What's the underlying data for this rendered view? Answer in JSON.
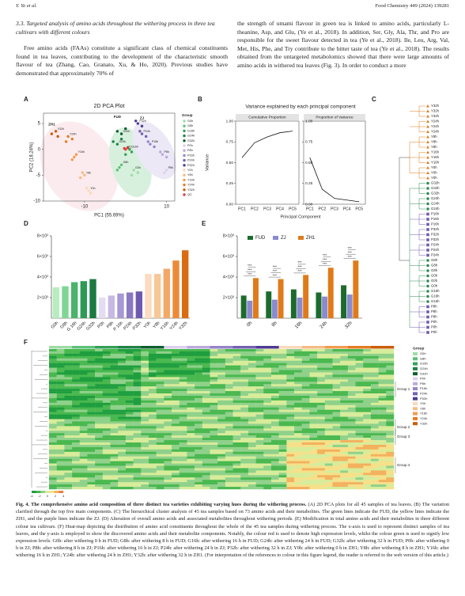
{
  "header": {
    "authors": "Y. Ye et al.",
    "journal": "Food Chemistry 449 (2024) 139281"
  },
  "section": {
    "heading": "3.3. Targeted analysis of amino acids throughout the withering process in three tea cultivars with different colours",
    "left_paragraph": "Free amino acids (FAAs) constitute a significant class of chemical constituents found in tea leaves, contributing to the development of the characteristic smooth flavour of tea (Zhang, Cao, Granato, Xu, & Ho, 2020). Previous studies have demonstrated that approximately 70% of",
    "right_paragraph": "the strength of umami flavour in green tea is linked to amino acids, particularly L-theanine, Asp, and Glu, (Ye et al., 2018). In addition, Ser, Gly, Ala, Thr, and Pro are responsible for the sweet flavour detected in tea (Ye et al., 2018). Ile, Leu, Arg, Val, Met, His, Phe, and Try contribute to the bitter taste of tea (Ye et al., 2018). The results obtained from the untargeted metabolomics showed that there were large amounts of amino acids in withered tea leaves (Fig. 3). In order to conduct a more"
  },
  "figure": {
    "panel_labels": [
      "A",
      "B",
      "C",
      "D",
      "E",
      "F"
    ],
    "dendrogram_leaves": [
      "Y32h",
      "Y32h",
      "Y32h",
      "Y24h",
      "Y24h",
      "Y24h",
      "Y8h",
      "Y8h",
      "Y8h",
      "Y16h",
      "Y16h",
      "Y16h",
      "Y0h",
      "Y0h",
      "Y0h",
      "G32h",
      "G32h",
      "G32h",
      "G24h",
      "G24h",
      "G24h",
      "P16h",
      "P16h",
      "P16h",
      "P32h",
      "P32h",
      "P32h",
      "P24h",
      "P24h",
      "P24h",
      "G8h",
      "G8h",
      "G8h",
      "G0h",
      "G0h",
      "G0h",
      "G16h",
      "G16h",
      "G16h",
      "P8h",
      "P8h",
      "P8h",
      "P0h",
      "P0h",
      "P0h"
    ],
    "heatmap_legend_title": "Group",
    "heatmap_groups": [
      "Group 1",
      "Group 2",
      "Group 3",
      "Group 4"
    ],
    "colorbar_ticks": [
      -4,
      -2,
      0,
      2,
      4
    ]
  },
  "chart_data": [
    {
      "type": "scatter",
      "title": "2D PCA Plot",
      "x_label": "PC1 (55.69%)",
      "y_label": "PC2 (18.24%)",
      "xlim": [
        -20,
        12
      ],
      "ylim": [
        -10,
        7
      ],
      "xticks": [
        -10,
        10
      ],
      "yticks": [
        -10,
        -5,
        0,
        5
      ],
      "legend_title": "Group",
      "annotations": [
        {
          "text": "FUD",
          "x": -2,
          "y": 6.3
        },
        {
          "text": "ZJ",
          "x": 4,
          "y": 6
        },
        {
          "text": "ZH1",
          "x": -18,
          "y": 4.8
        }
      ],
      "series": [
        {
          "name": "G0h",
          "color": "#9fdca6",
          "x": [
            2,
            1.5,
            3
          ],
          "y": [
            -4,
            -5,
            -4.5
          ]
        },
        {
          "name": "G8h",
          "color": "#5fc07a",
          "x": [
            -1,
            -2,
            -1.5
          ],
          "y": [
            -3,
            -4,
            -3.5
          ]
        },
        {
          "name": "G16h",
          "color": "#34a05a",
          "x": [
            1,
            0,
            1.5
          ],
          "y": [
            0,
            -1,
            -0.5
          ]
        },
        {
          "name": "G24h",
          "color": "#1f8246",
          "x": [
            -2,
            -1,
            -3
          ],
          "y": [
            1,
            2,
            1.5
          ]
        },
        {
          "name": "G32h",
          "color": "#0f5e30",
          "x": [
            -1,
            0,
            -2
          ],
          "y": [
            3,
            4,
            3.5
          ]
        },
        {
          "name": "P0h",
          "color": "#ddd0ee",
          "x": [
            10,
            11,
            9.5
          ],
          "y": [
            -4,
            -3.5,
            -4.5
          ]
        },
        {
          "name": "P8h",
          "color": "#bcaadc",
          "x": [
            9,
            10,
            8.5
          ],
          "y": [
            -1,
            -1.5,
            -0.5
          ]
        },
        {
          "name": "P16h",
          "color": "#9683c8",
          "x": [
            6,
            7,
            5.5
          ],
          "y": [
            1,
            0.5,
            1.5
          ]
        },
        {
          "name": "P24h",
          "color": "#7361b0",
          "x": [
            4,
            5,
            3.5
          ],
          "y": [
            3,
            2.5,
            3.5
          ]
        },
        {
          "name": "P32h",
          "color": "#4e3b91",
          "x": [
            3,
            4,
            2.5
          ],
          "y": [
            5,
            4.5,
            5.5
          ]
        },
        {
          "name": "Y0h",
          "color": "#f9d9bb",
          "x": [
            -9,
            -8.5,
            -9.5
          ],
          "y": [
            -8,
            -8.5,
            -7.5
          ]
        },
        {
          "name": "Y8h",
          "color": "#f5bc85",
          "x": [
            -10,
            -11,
            -10.5
          ],
          "y": [
            -5,
            -5.5,
            -4.5
          ]
        },
        {
          "name": "Y16h",
          "color": "#f09c50",
          "x": [
            -12,
            -13,
            -12.5
          ],
          "y": [
            -1,
            -2,
            -1.5
          ]
        },
        {
          "name": "Y24h",
          "color": "#e47c24",
          "x": [
            -14,
            -13,
            -14.5
          ],
          "y": [
            2.5,
            2,
            1.5
          ]
        },
        {
          "name": "Y32h",
          "color": "#c95d0a",
          "x": [
            -17,
            -18,
            -16.5
          ],
          "y": [
            3.5,
            3,
            2.5
          ]
        },
        {
          "name": "QC",
          "color": "#e04040",
          "x": [
            0,
            0.5,
            -0.3
          ],
          "y": [
            0,
            0.3,
            0.2
          ]
        }
      ]
    },
    {
      "type": "line",
      "title": "Variance explained by each principal component",
      "x_label": "Principal Component",
      "y_label": "Variance",
      "categories": [
        "PC1",
        "PC2",
        "PC3",
        "PC4",
        "PC5"
      ],
      "ylim": [
        0,
        1
      ],
      "yticks": [
        {
          "value": 0,
          "label": "0.00"
        },
        {
          "value": 0.25,
          "label": "0.25"
        },
        {
          "value": 0.5,
          "label": "0.50"
        },
        {
          "value": 0.75,
          "label": "0.75"
        },
        {
          "value": 1,
          "label": "1.00"
        }
      ],
      "series": [
        {
          "name": "Cumulative Proportion",
          "color": "#111111",
          "values": [
            0.56,
            0.74,
            0.81,
            0.86,
            0.88
          ]
        },
        {
          "name": "Proportion of Variance",
          "color": "#111111",
          "values": [
            0.56,
            0.18,
            0.07,
            0.05,
            0.03
          ]
        }
      ]
    },
    {
      "type": "bar",
      "categories": [
        "G0h",
        "G8h",
        "G 16h",
        "G24h",
        "G32h",
        "P0h",
        "P8h",
        "P 16h",
        "P24h",
        "P32h",
        "Y0h",
        "Y8h",
        "Y16h",
        "Y24h",
        "Y32h"
      ],
      "values": [
        3000,
        3100,
        3500,
        3600,
        3800,
        2000,
        2200,
        2400,
        2500,
        2600,
        4300,
        4300,
        4800,
        5600,
        6600
      ],
      "colors": [
        "#b8ecc0",
        "#7fd694",
        "#4cb36a",
        "#2e9a56",
        "#1a7a40",
        "#e3dcf2",
        "#c6b9e3",
        "#a898d4",
        "#8a78c2",
        "#6d5aae",
        "#fbdcc0",
        "#f8c796",
        "#f3a866",
        "#eb8b38",
        "#d96c12"
      ],
      "ylim": [
        0,
        8000
      ],
      "yticks": [
        {
          "value": 2000,
          "label": "2×10³"
        },
        {
          "value": 4000,
          "label": "4×10³"
        },
        {
          "value": 6000,
          "label": "6×10³"
        },
        {
          "value": 8000,
          "label": "8×10³"
        }
      ]
    },
    {
      "type": "grouped-bar",
      "categories": [
        "0h",
        "8h",
        "16h",
        "24h",
        "32h"
      ],
      "ylim": [
        0,
        8000
      ],
      "yticks": [
        {
          "value": 2000,
          "label": "2×10³"
        },
        {
          "value": 4000,
          "label": "4×10³"
        },
        {
          "value": 6000,
          "label": "6×10³"
        },
        {
          "value": 8000,
          "label": "8×10³"
        }
      ],
      "series": [
        {
          "name": "FUD",
          "color": "#1d6b2c",
          "values": [
            2200,
            2600,
            2800,
            2500,
            3200
          ]
        },
        {
          "name": "ZJ",
          "color": "#8a8ad0",
          "values": [
            1700,
            1800,
            2000,
            2100,
            2300
          ]
        },
        {
          "name": "ZH1",
          "color": "#e07b1a",
          "values": [
            3900,
            3800,
            4200,
            4900,
            5600
          ]
        }
      ],
      "significance": [
        [
          "***",
          "***",
          "***"
        ],
        [
          "***",
          "***",
          "***"
        ],
        [
          "***",
          "***",
          "***"
        ],
        [
          "***",
          "***",
          "***"
        ],
        [
          "***",
          "***",
          "***"
        ]
      ]
    }
  ],
  "caption": {
    "title": "Fig. 4. The comprehensive amino acid composition of three distinct tea varieties exhibiting varying hues during the withering process.",
    "text": "(A) 2D PCA plots for all 45 samples of tea leaves. (B) The variation clarified through the top five main components. (C) The hierarchical cluster analysis of 45 tea samples based on 73 amino acids and their metabolites. The green lines indicate the FUD, the yellow lines indicate the ZH1, and the purple lines indicate the ZJ. (D) Alteration of overall amino acids and associated metabolites throughout withering periods. (E) Modification in total amino acids and their metabolites in three different colour tea cultivars. (F) Heat-map depicting the distribution of amino acid constituents throughout the whole of the 45 tea samples during withering process. The x-axis is used to represent distinct samples of tea leaves, and the y-axis is employed to show the discovered amino acids and their metabolite components. Notably, the colour red is used to denote high expression levels, whilst the colour green is used to signify low expression levels. G0h: after withering 0 h in FUD; G8h: after withering 8 h in FUD; G16h: after withering 16 h in FUD; G24h: after withering 24 h in FUD; G32h: after withering 32 h in FUD; P0h: after withering 0 h in ZJ; P8h: after withering 8 h in ZJ; P16h: after withering 16 h in ZJ; P24h: after withering 24 h in ZJ; P32h: after withering 32 h in ZJ; Y0h: after withering 0 h in ZH1; Y8h: after withering 8 h in ZH1; Y16h: after withering 16 h in ZH1; Y24h: after withering 24 h in ZH1; Y32h: after withering 32 h in ZH1. (For interpretation of the references to colour in this figure legend, the reader is referred to the web version of this article.)"
  }
}
